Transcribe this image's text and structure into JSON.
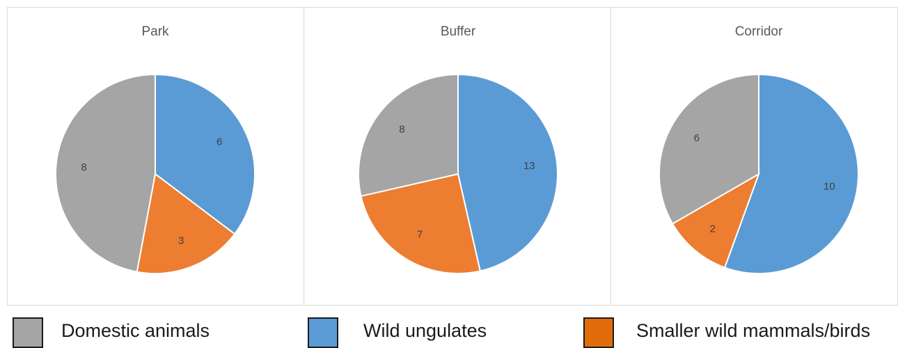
{
  "chart_data": [
    {
      "type": "pie",
      "title": "Park",
      "series": [
        {
          "name": "Wild ungulates",
          "value": 6,
          "color": "#5b9bd5"
        },
        {
          "name": "Smaller wild mammals/birds",
          "value": 3,
          "color": "#ed7d31"
        },
        {
          "name": "Domestic animals",
          "value": 8,
          "color": "#a5a5a5"
        }
      ]
    },
    {
      "type": "pie",
      "title": "Buffer",
      "series": [
        {
          "name": "Wild ungulates",
          "value": 13,
          "color": "#5b9bd5"
        },
        {
          "name": "Smaller wild mammals/birds",
          "value": 7,
          "color": "#ed7d31"
        },
        {
          "name": "Domestic animals",
          "value": 8,
          "color": "#a5a5a5"
        }
      ]
    },
    {
      "type": "pie",
      "title": "Corridor",
      "series": [
        {
          "name": "Wild ungulates",
          "value": 10,
          "color": "#5b9bd5"
        },
        {
          "name": "Smaller wild mammals/birds",
          "value": 2,
          "color": "#ed7d31"
        },
        {
          "name": "Domestic animals",
          "value": 6,
          "color": "#a5a5a5"
        }
      ]
    }
  ],
  "legend": {
    "items": [
      {
        "label": "Domestic animals",
        "color": "#a5a5a5"
      },
      {
        "label": "Wild ungulates",
        "color": "#5b9bd5"
      },
      {
        "label": "Smaller wild mammals/birds",
        "color": "#e36c0a"
      }
    ]
  }
}
